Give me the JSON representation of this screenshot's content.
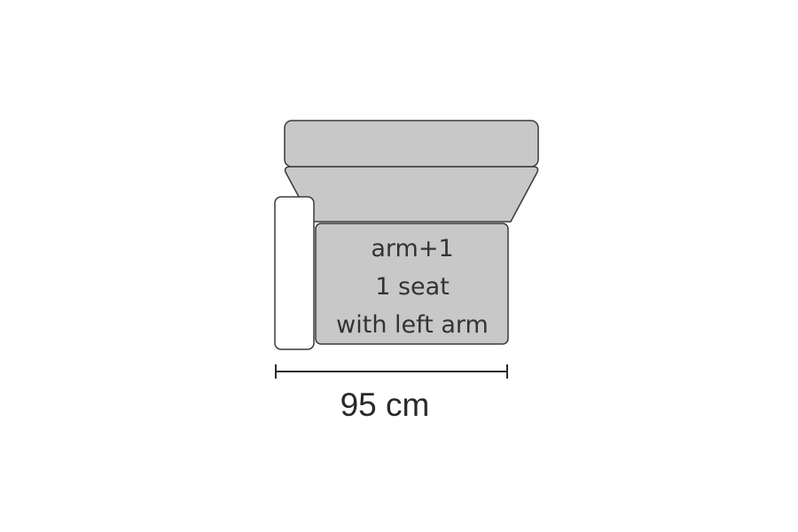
{
  "module": {
    "lines": [
      "arm+1",
      "1 seat",
      "with left arm"
    ]
  },
  "dimension": {
    "label": "95 cm"
  },
  "colors": {
    "fill": "#c8c8c8",
    "stroke": "#3a3a3a",
    "arm_fill": "#ffffff"
  }
}
